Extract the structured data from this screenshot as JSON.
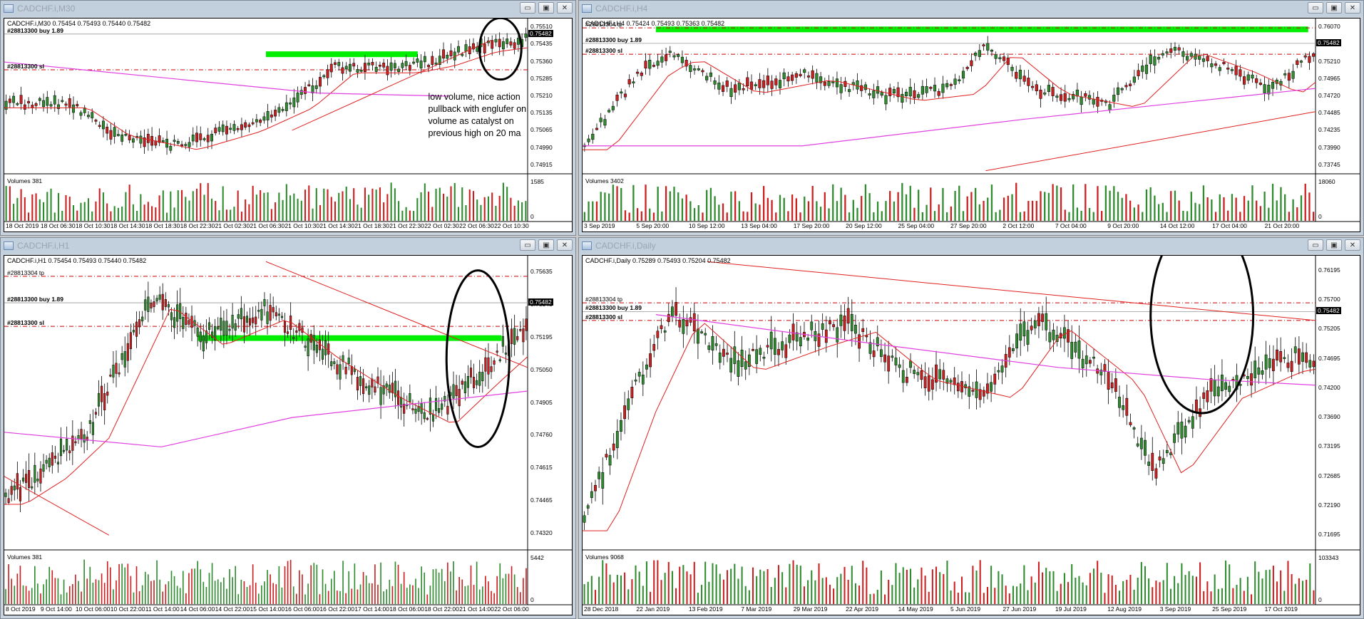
{
  "colors": {
    "bull": "#2e8b2e",
    "bear": "#cc1f1f",
    "ma20": "#e02020",
    "ma200": "#e040e0",
    "zone": "#00ee00",
    "level": "#cc0000",
    "buy": "#999999"
  },
  "panels": [
    {
      "title": "CADCHF.i,M30",
      "header": "CADCHF.i,M30  0.75454 0.75493 0.75440 0.75482",
      "tp_label": "",
      "buy_label": "#28813300 buy 1.89",
      "sl_label": "#28813300 sl",
      "price_box": "0.75482",
      "price_ticks": [
        "0.75510",
        "0.75435",
        "0.75360",
        "0.75285",
        "0.75210",
        "0.75135",
        "0.75065",
        "0.74990",
        "0.74915"
      ],
      "volume_label": "Volumes 381",
      "volume_ticks": [
        "1585",
        "0"
      ],
      "time_ticks": [
        "18 Oct 2019",
        "18 Oct 06:30",
        "18 Oct 10:30",
        "18 Oct 14:30",
        "18 Oct 18:30",
        "18 Oct 22:30",
        "21 Oct 02:30",
        "21 Oct 06:30",
        "21 Oct 10:30",
        "21 Oct 14:30",
        "21 Oct 18:30",
        "21 Oct 22:30",
        "22 Oct 02:30",
        "22 Oct 06:30",
        "22 Oct 10:30"
      ],
      "note": "low volume, nice action pullback with englufer on volume as catalyst on previous high on 20 ma"
    },
    {
      "title": "CADCHF.i,H4",
      "header": "CADCHF.i,H4  0.75424 0.75493 0.75363 0.75482",
      "tp_label": "#28813304 tp",
      "buy_label": "#28813300 buy 1.89",
      "sl_label": "#28813300 sl",
      "price_box": "0.75482",
      "price_ticks": [
        "0.76070",
        "0.75690",
        "0.75210",
        "0.74965",
        "0.74720",
        "0.74485",
        "0.74235",
        "0.73990",
        "0.73745"
      ],
      "volume_label": "Volumes 3402",
      "volume_ticks": [
        "18060",
        "0"
      ],
      "time_ticks": [
        "3 Sep 2019",
        "5 Sep 20:00",
        "10 Sep 12:00",
        "13 Sep 04:00",
        "17 Sep 20:00",
        "20 Sep 12:00",
        "25 Sep 04:00",
        "27 Sep 20:00",
        "2 Oct 12:00",
        "7 Oct 04:00",
        "9 Oct 20:00",
        "14 Oct 12:00",
        "17 Oct 04:00",
        "21 Oct 20:00"
      ],
      "note": ""
    },
    {
      "title": "CADCHF.i,H1",
      "header": "CADCHF.i,H1  0.75454 0.75493 0.75440 0.75482",
      "tp_label": "#28813304 tp",
      "buy_label": "#28813300 buy 1.89",
      "sl_label": "#28813300 sl",
      "price_box": "0.75482",
      "price_ticks": [
        "0.75635",
        "0.75345",
        "0.75195",
        "0.75050",
        "0.74905",
        "0.74760",
        "0.74615",
        "0.74465",
        "0.74320"
      ],
      "volume_label": "Volumes 381",
      "volume_ticks": [
        "5442",
        "0"
      ],
      "time_ticks": [
        "8 Oct 2019",
        "9 Oct 14:00",
        "10 Oct 06:00",
        "10 Oct 22:00",
        "11 Oct 14:00",
        "14 Oct 06:00",
        "14 Oct 22:00",
        "15 Oct 14:00",
        "16 Oct 06:00",
        "16 Oct 22:00",
        "17 Oct 14:00",
        "18 Oct 06:00",
        "18 Oct 22:00",
        "21 Oct 14:00",
        "22 Oct 06:00"
      ],
      "note": ""
    },
    {
      "title": "CADCHF.i,Daily",
      "header": "CADCHF.i,Daily  0.75289 0.75493 0.75204 0.75482",
      "tp_label": "#28813304 tp",
      "buy_label": "#28813300 buy 1.89",
      "sl_label": "#28813300 sl",
      "price_box": "0.75482",
      "price_ticks": [
        "0.76195",
        "0.75700",
        "0.75205",
        "0.74695",
        "0.74200",
        "0.73690",
        "0.73195",
        "0.72685",
        "0.72190",
        "0.71695"
      ],
      "volume_label": "Volumes 9068",
      "volume_ticks": [
        "103343",
        "0"
      ],
      "time_ticks": [
        "28 Dec 2018",
        "22 Jan 2019",
        "13 Feb 2019",
        "7 Mar 2019",
        "29 Mar 2019",
        "22 Apr 2019",
        "14 May 2019",
        "5 Jun 2019",
        "27 Jun 2019",
        "19 Jul 2019",
        "12 Aug 2019",
        "3 Sep 2019",
        "25 Sep 2019",
        "17 Oct 2019"
      ],
      "note": ""
    }
  ]
}
